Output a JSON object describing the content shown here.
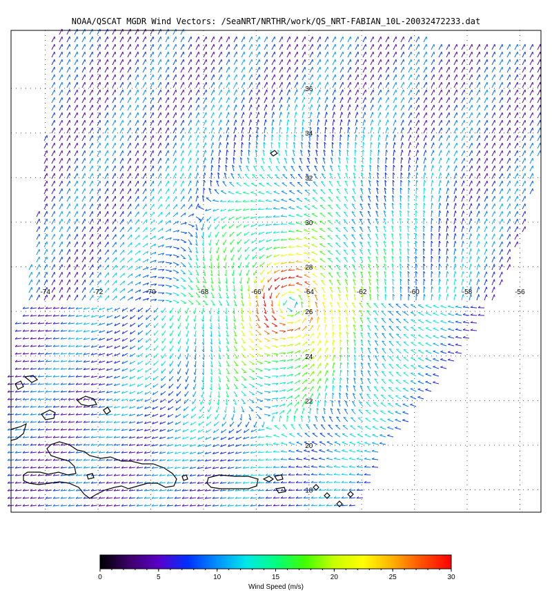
{
  "title": "NOAA/QSCAT MGDR Wind Vectors: /SeaNRT/NRTHR/work/QS_NRT-FABIAN_10L-20032472233.dat",
  "map": {
    "lon_labels": [
      "-74",
      "-72",
      "-70",
      "-68",
      "-66",
      "-64",
      "-62",
      "-60",
      "-58",
      "-56"
    ],
    "lat_labels": [
      "36",
      "34",
      "32",
      "30",
      "28",
      "26",
      "24",
      "22",
      "20",
      "18"
    ],
    "lon_range": [
      -75.3,
      -55.2
    ],
    "lat_range": [
      17.0,
      38.6
    ],
    "storm_center": {
      "lon": -64.7,
      "lat": 26.3
    },
    "max_wind_ms": 30,
    "storm_name": "FABIAN"
  },
  "colorbar": {
    "label": "Wind Speed (m/s)",
    "ticks": [
      "0",
      "5",
      "10",
      "15",
      "20",
      "25",
      "30"
    ],
    "range": [
      0,
      30
    ],
    "colors": [
      "#000000",
      "#3c0068",
      "#5a00c8",
      "#0030ff",
      "#0090ff",
      "#00e8e8",
      "#00ff80",
      "#40ff00",
      "#c8ff00",
      "#ffff00",
      "#ffb000",
      "#ff5000",
      "#ff0000"
    ]
  }
}
